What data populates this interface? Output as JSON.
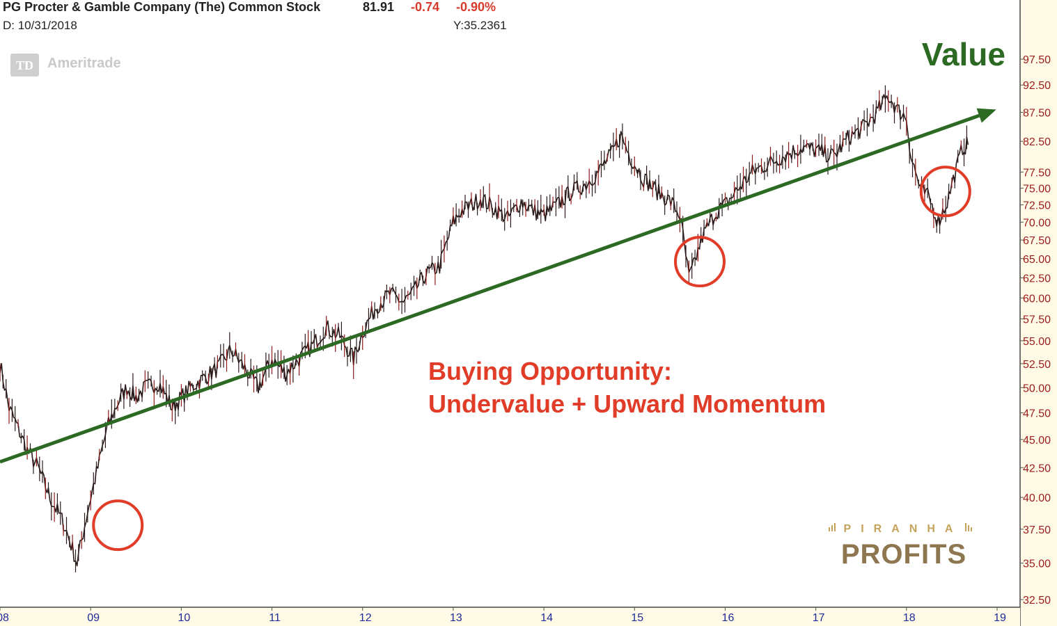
{
  "header": {
    "title": "PG Procter & Gamble Company (The) Common Stock",
    "last": "81.91",
    "change": "-0.74",
    "change_pct": "-0.90%",
    "date_line": "D: 10/31/2018",
    "y_readout": "Y:35.2361"
  },
  "watermark": {
    "brand": "Ameritrade",
    "badge": "TD"
  },
  "annotations": {
    "trend_label": "Value",
    "callout_line1": "Buying Opportunity:",
    "callout_line2": "Undervalue + Upward Momentum"
  },
  "logo": {
    "top": "PIRANHA",
    "bottom": "PROFITS"
  },
  "colors": {
    "background": "#ffffff",
    "axis_panel": "#fffbe6",
    "header_text": "#222222",
    "negative": "#d63a2a",
    "price_ink": "#2a1a1a",
    "price_accent": "#8b1a1a",
    "trend_line": "#2c6a24",
    "callout": "#e03c28",
    "circle": "#e03c28",
    "y_tick_text": "#9b1c1c",
    "x_tick_text": "#1f2a9a",
    "logo_gold": "#c5a35a",
    "logo_text": "#8e7650"
  },
  "chart_data": {
    "type": "line",
    "x_unit": "year",
    "xlim": [
      2008.0,
      2019.0
    ],
    "ylim": [
      32.5,
      97.5
    ],
    "scale": "log",
    "grid": false,
    "y_axis_side": "right",
    "x_ticks": [
      "08",
      "09",
      "10",
      "11",
      "12",
      "13",
      "14",
      "15",
      "16",
      "17",
      "18",
      "19"
    ],
    "y_ticks": [
      "97.50",
      "92.50",
      "87.50",
      "82.50",
      "77.50",
      "75.00",
      "72.50",
      "70.00",
      "67.50",
      "65.00",
      "62.50",
      "60.00",
      "57.50",
      "55.00",
      "52.50",
      "50.00",
      "47.50",
      "45.00",
      "42.50",
      "40.00",
      "37.50",
      "35.00",
      "32.50"
    ],
    "series": [
      {
        "style": "price",
        "x": [
          2008.0,
          2008.1,
          2008.2,
          2008.3,
          2008.42,
          2008.55,
          2008.7,
          2008.85,
          2009.0,
          2009.08,
          2009.18,
          2009.3,
          2009.4,
          2009.5,
          2009.6,
          2009.75,
          2009.9,
          2010.0,
          2010.1,
          2010.25,
          2010.4,
          2010.55,
          2010.7,
          2010.85,
          2011.0,
          2011.15,
          2011.3,
          2011.45,
          2011.6,
          2011.75,
          2011.9,
          2012.0,
          2012.15,
          2012.3,
          2012.45,
          2012.55,
          2012.7,
          2012.85,
          2013.0,
          2013.08,
          2013.2,
          2013.3,
          2013.45,
          2013.6,
          2013.75,
          2013.9,
          2014.0,
          2014.15,
          2014.3,
          2014.45,
          2014.6,
          2014.75,
          2014.85,
          2014.95,
          2015.1,
          2015.25,
          2015.4,
          2015.5,
          2015.6,
          2015.65,
          2015.75,
          2015.9,
          2016.0,
          2016.15,
          2016.3,
          2016.5,
          2016.7,
          2016.85,
          2017.0,
          2017.2,
          2017.35,
          2017.5,
          2017.65,
          2017.8,
          2017.9,
          2018.0,
          2018.05,
          2018.15,
          2018.25,
          2018.35,
          2018.45,
          2018.55,
          2018.62,
          2018.68
        ],
        "y": [
          52.5,
          48.0,
          46.0,
          44.0,
          42.5,
          40.0,
          38.0,
          35.0,
          40.0,
          42.5,
          46.0,
          48.5,
          50.0,
          49.0,
          50.0,
          50.5,
          48.0,
          49.0,
          50.0,
          51.0,
          52.0,
          54.0,
          52.0,
          50.0,
          53.0,
          51.5,
          53.0,
          54.5,
          56.5,
          55.5,
          53.0,
          56.0,
          59.0,
          60.5,
          59.5,
          60.5,
          63.0,
          64.0,
          70.0,
          71.5,
          72.5,
          73.5,
          72.0,
          70.5,
          73.0,
          71.5,
          71.0,
          72.5,
          74.5,
          75.5,
          77.5,
          80.5,
          83.5,
          80.0,
          76.5,
          74.5,
          73.0,
          71.0,
          62.5,
          64.0,
          68.0,
          71.5,
          72.5,
          75.0,
          77.5,
          79.0,
          80.5,
          81.5,
          81.0,
          80.0,
          83.0,
          84.5,
          87.0,
          90.5,
          88.0,
          86.5,
          80.0,
          75.0,
          73.5,
          70.0,
          73.0,
          78.0,
          81.5,
          81.91
        ]
      },
      {
        "style": "trend",
        "x": [
          2008.0,
          2018.99
        ],
        "y": [
          43.0,
          88.0
        ]
      }
    ],
    "circles": [
      {
        "x": 2009.3,
        "y": 37.8
      },
      {
        "x": 2015.72,
        "y": 64.6
      },
      {
        "x": 2018.43,
        "y": 74.5
      }
    ]
  }
}
